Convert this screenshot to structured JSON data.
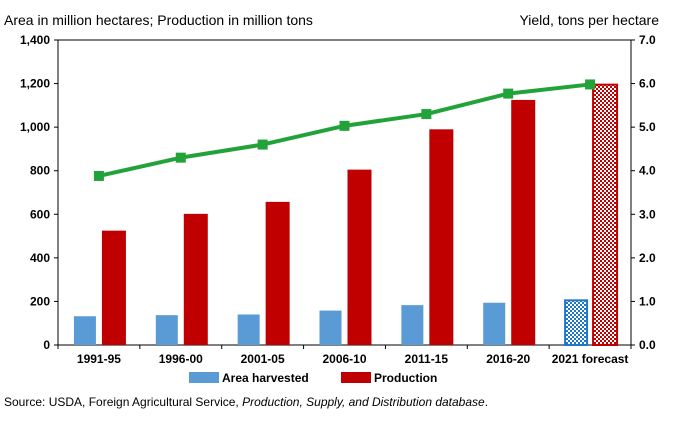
{
  "chart_data": {
    "type": "bar+line",
    "title_left": "Area in million hectares; Production in million tons",
    "title_right": "Yield, tons per hectare",
    "categories": [
      "1991-95",
      "1996-00",
      "2001-05",
      "2006-10",
      "2011-15",
      "2016-20",
      "2021 forecast"
    ],
    "left_axis": {
      "range": [
        0,
        1400
      ],
      "ticks": [
        0,
        200,
        400,
        600,
        800,
        1000,
        1200,
        1400
      ],
      "tick_labels": [
        "0",
        "200",
        "400",
        "600",
        "800",
        "1,000",
        "1,200",
        "1,400"
      ]
    },
    "right_axis": {
      "range": [
        0,
        7
      ],
      "ticks": [
        0,
        1,
        2,
        3,
        4,
        5,
        6,
        7
      ],
      "tick_labels": [
        "0.0",
        "1.0",
        "2.0",
        "3.0",
        "4.0",
        "5.0",
        "6.0",
        "7.0"
      ]
    },
    "series": [
      {
        "name": "Area harvested",
        "type": "bar",
        "axis": "left",
        "color": "#5b9bd5",
        "forecast_color": "#1f77c8",
        "values": [
          132,
          137,
          140,
          158,
          183,
          194,
          205
        ]
      },
      {
        "name": "Production",
        "type": "bar",
        "axis": "left",
        "color": "#c00000",
        "forecast_color": "#c00000",
        "values": [
          525,
          602,
          657,
          805,
          990,
          1125,
          1195
        ]
      },
      {
        "name": "Yield",
        "type": "line",
        "axis": "right",
        "color": "#22a33a",
        "values": [
          3.88,
          4.3,
          4.6,
          5.03,
          5.3,
          5.77,
          5.98
        ]
      }
    ],
    "legend": [
      "Area harvested",
      "Production"
    ],
    "legend_position": "bottom",
    "grid": false,
    "forecast_hatched_index": 6
  },
  "source": {
    "prefix": "Source: USDA, Foreign Agricultural Service, ",
    "italic": "Production, Supply, and Distribution database",
    "suffix": "."
  }
}
